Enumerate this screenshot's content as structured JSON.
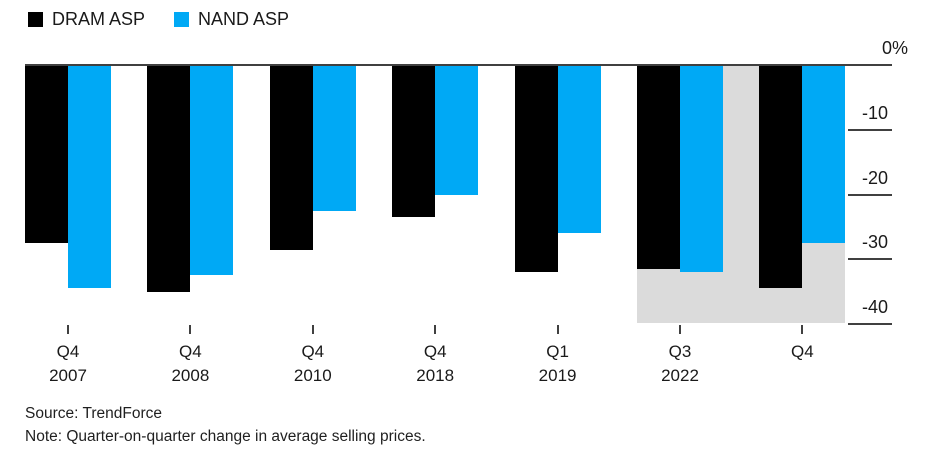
{
  "footer": {
    "source": "Source: TrendForce",
    "note": "Note: Quarter-on-quarter change in average selling prices."
  },
  "chart_data": {
    "type": "bar",
    "title": "",
    "unit": "%",
    "grid": false,
    "legend_position": "top-left",
    "categories": [
      "Q4 2007",
      "Q4 2008",
      "Q4 2010",
      "Q4 2018",
      "Q1 2019",
      "Q3 2022",
      "Q4 2022"
    ],
    "category_labels": [
      [
        "Q4",
        "2007"
      ],
      [
        "Q4",
        "2008"
      ],
      [
        "Q4",
        "2010"
      ],
      [
        "Q4",
        "2018"
      ],
      [
        "Q1",
        "2019"
      ],
      [
        "Q3",
        "2022"
      ],
      [
        "Q4",
        ""
      ]
    ],
    "series": [
      {
        "name": "DRAM ASP",
        "color": "#000000",
        "values": [
          -27.5,
          -35,
          -28.5,
          -23.5,
          -32,
          -31.5,
          -34.5
        ]
      },
      {
        "name": "NAND ASP",
        "color": "#00a9f5",
        "values": [
          -34.5,
          -32.5,
          -22.5,
          -20,
          -26,
          -32,
          -27.5
        ]
      }
    ],
    "ylim": [
      -44,
      0
    ],
    "yticks": [
      {
        "value": 0,
        "label": "0%"
      },
      {
        "value": -10,
        "label": "-10"
      },
      {
        "value": -20,
        "label": "-20"
      },
      {
        "value": -30,
        "label": "-30"
      },
      {
        "value": -40,
        "label": "-40"
      }
    ],
    "highlight_band": {
      "categories": [
        "Q3 2022",
        "Q4 2022"
      ],
      "from_index": 5,
      "to_index": 6,
      "extends_to": -40,
      "color": "#dbdbdb"
    },
    "colors": {
      "axis": "#404040",
      "text": "#1a1a1a",
      "background": "#ffffff"
    }
  }
}
